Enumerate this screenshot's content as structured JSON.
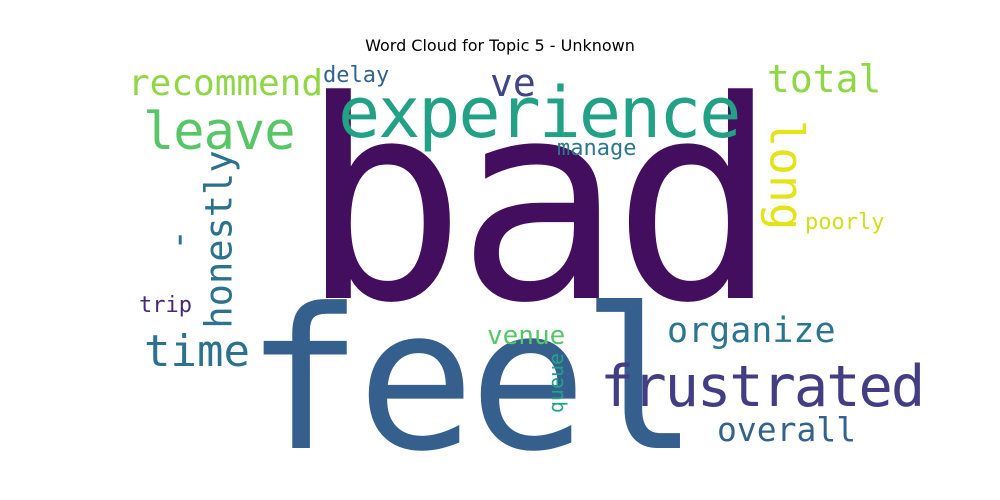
{
  "title": "Word Cloud for Topic 5 - Unknown",
  "words": [
    {
      "text": "bad",
      "color": "#440e5e"
    },
    {
      "text": "feel",
      "color": "#355f8d"
    },
    {
      "text": "experience",
      "color": "#22a186"
    },
    {
      "text": "frustrated",
      "color": "#433d84"
    },
    {
      "text": "leave",
      "color": "#56c667"
    },
    {
      "text": "recommend",
      "color": "#8fd744"
    },
    {
      "text": "total",
      "color": "#8fd744"
    },
    {
      "text": "ve",
      "color": "#414487"
    },
    {
      "text": "long",
      "color": "#e2e418"
    },
    {
      "text": "honestly",
      "color": "#2c718e"
    },
    {
      "text": "'",
      "color": "#2c718e"
    },
    {
      "text": "time",
      "color": "#2c718e"
    },
    {
      "text": "organize",
      "color": "#2b758e"
    },
    {
      "text": "overall",
      "color": "#33638d"
    },
    {
      "text": "venue",
      "color": "#56c667"
    },
    {
      "text": "queue",
      "color": "#22a386"
    },
    {
      "text": "trip",
      "color": "#482878"
    },
    {
      "text": "delay",
      "color": "#33638d"
    },
    {
      "text": "manage",
      "color": "#2a788e"
    },
    {
      "text": "poorly",
      "color": "#d0e11c"
    }
  ]
}
